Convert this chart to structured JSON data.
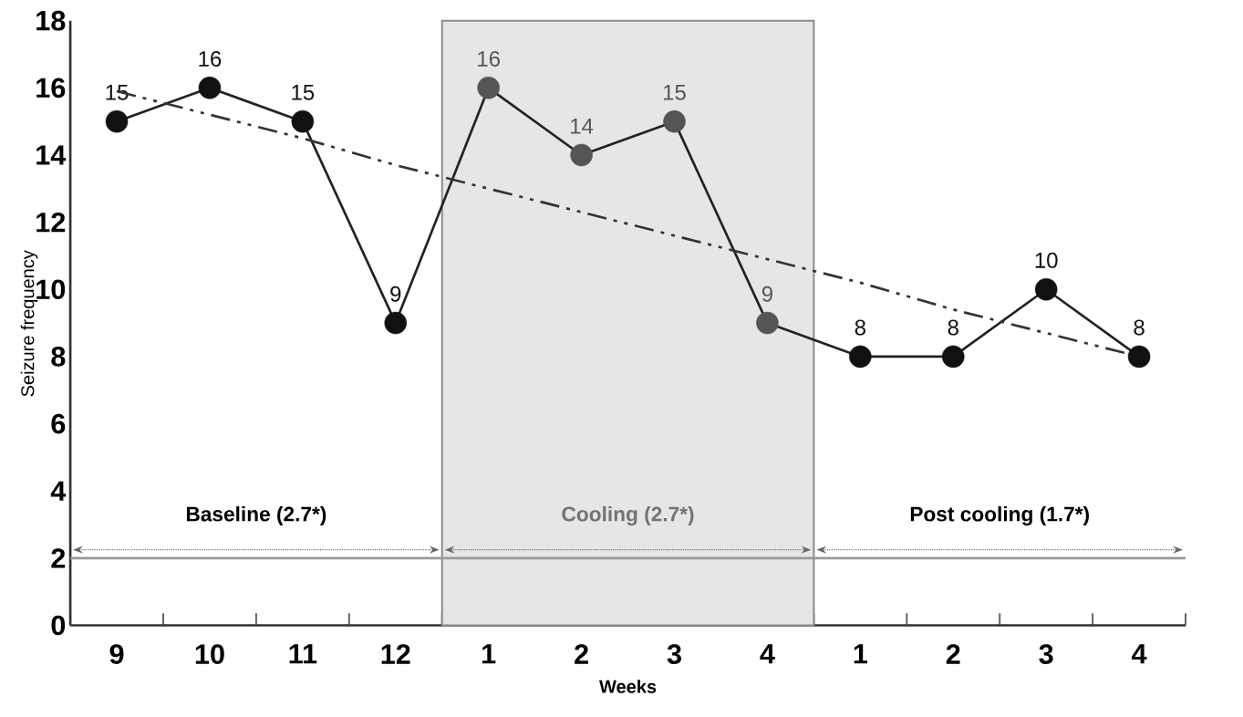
{
  "chart_data": {
    "type": "line",
    "xlabel": "Weeks",
    "ylabel": "Seizure frequency",
    "categories": [
      "9",
      "10",
      "11",
      "12",
      "1",
      "2",
      "3",
      "4",
      "1",
      "2",
      "3",
      "4"
    ],
    "ylim": [
      0,
      18
    ],
    "yticks": [
      0,
      2,
      4,
      6,
      8,
      10,
      12,
      14,
      16,
      18
    ],
    "series": [
      {
        "color": "#222222",
        "colors": [
          "#111111",
          "#111111",
          "#111111",
          "#111111",
          "#555555",
          "#555555",
          "#555555",
          "#555555",
          "#111111",
          "#111111",
          "#111111",
          "#111111"
        ],
        "values": [
          15,
          16,
          15,
          9,
          16,
          14,
          15,
          9,
          8,
          8,
          10,
          8
        ],
        "value_labels": [
          "15",
          "16",
          "15",
          "9",
          "16",
          "14",
          "15",
          "9",
          "8",
          "8",
          "10",
          "8"
        ],
        "marker": "circle",
        "line_style": "solid"
      },
      {
        "color": "#333333",
        "values": [
          15.9,
          15.2,
          14.5,
          13.7,
          13.0,
          12.3,
          11.6,
          10.9,
          10.2,
          9.4,
          8.7,
          8.0
        ],
        "marker": "none",
        "line_style": "dashed"
      }
    ],
    "bands": [
      {
        "axis": "x",
        "from": "1",
        "to": "4",
        "label": "Cooling (2.7*)",
        "color": "#e6e6e6"
      }
    ],
    "annotations": [
      "Baseline (2.7*)",
      "Post cooling (1.7*)"
    ],
    "ref_lines": [
      {
        "axis": "y",
        "value": 2,
        "color": "#999999"
      }
    ]
  }
}
